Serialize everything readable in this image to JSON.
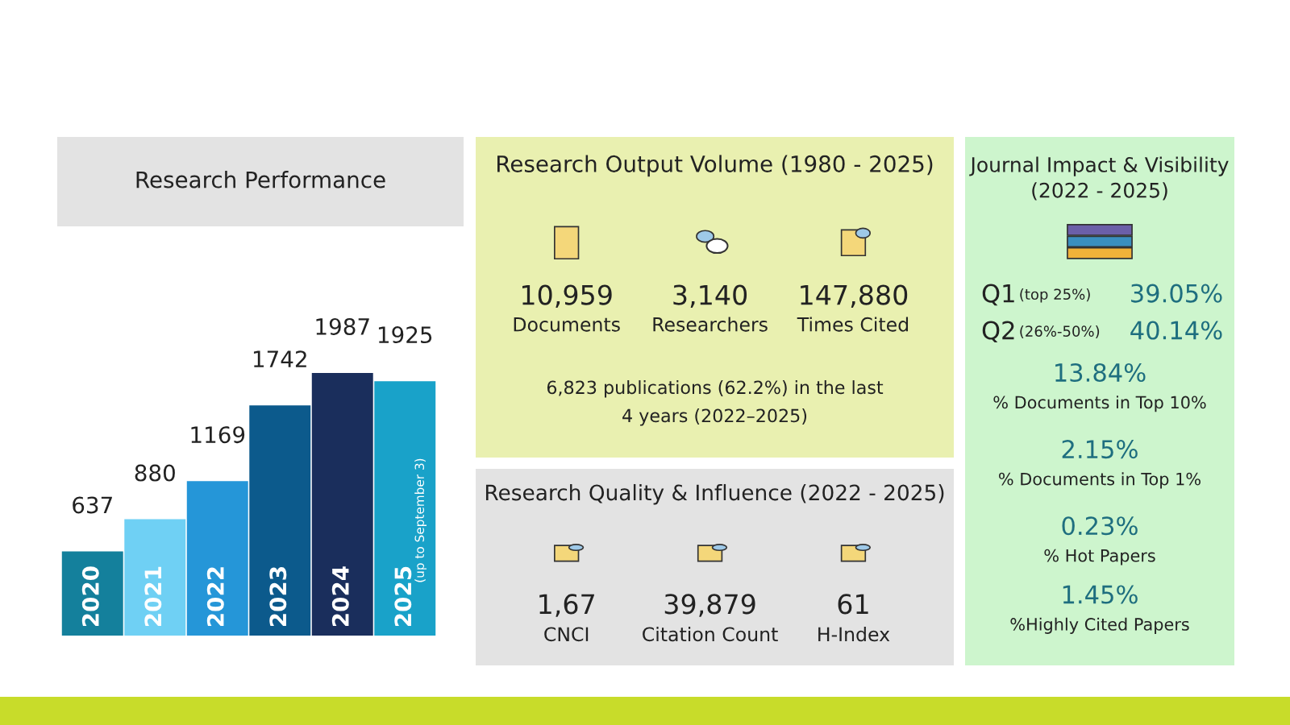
{
  "chart_data": [
    {
      "type": "bar",
      "title": "Research Performance",
      "categories": [
        "2020",
        "2021",
        "2022",
        "2023",
        "2024",
        "2025"
      ],
      "values": [
        637,
        880,
        1169,
        1742,
        1987,
        1925
      ],
      "colors": [
        "#14809c",
        "#6fd0f4",
        "#2596d8",
        "#0c5a8c",
        "#1a2e5c",
        "#19a2c9"
      ],
      "data_labels": true,
      "annotations": [
        "(up to September 3)"
      ]
    },
    {
      "type": "other",
      "title": "Research Output Volume (1980 - 2025)",
      "annotations": [
        "10,959",
        "Documents",
        "3,140",
        "Researchers",
        "147,880",
        "Times Cited",
        "6,823 publications (62.2%) in the last\n4 years (2022–2025)"
      ]
    },
    {
      "type": "other",
      "title": "Research Quality & Influence (2022 - 2025)",
      "annotations": [
        "1,67",
        "CNCI",
        "39,879",
        "Citation Count",
        "61",
        "H-Index"
      ]
    },
    {
      "type": "other",
      "title": "Journal Impact & Visibility\n(2022 - 2025)",
      "annotations": [
        "Q1",
        "(top 25%)",
        "39.05%",
        "Q2",
        "(26%-50%)",
        "40.14%",
        "13.84%",
        "% Documents in Top 10%",
        "2.15%",
        "% Documents in Top 1%",
        "0.23%",
        "% Hot Papers",
        "1.45%",
        "%Highly Cited Papers"
      ]
    }
  ]
}
